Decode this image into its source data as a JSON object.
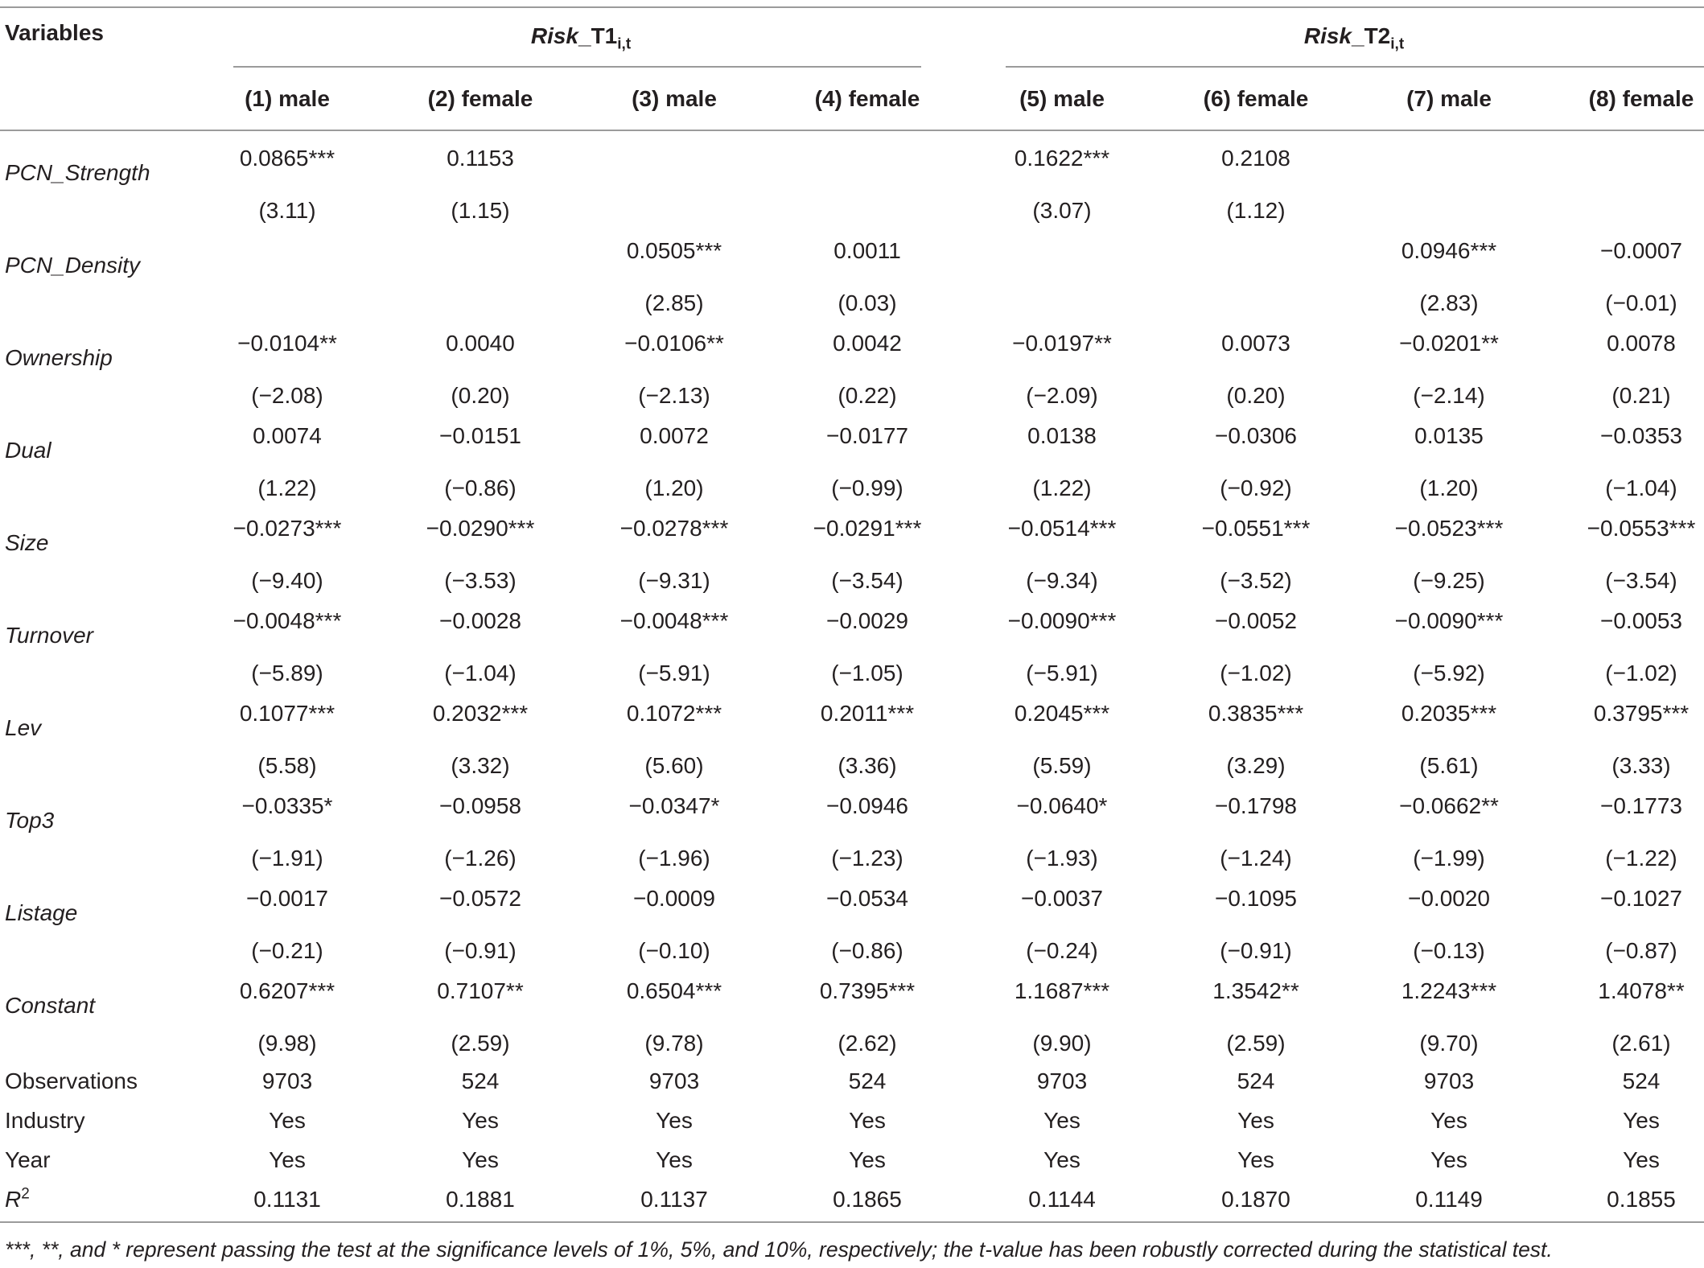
{
  "header": {
    "variables_label": "Variables",
    "group1": {
      "main": "Risk",
      "suffix": "_T1",
      "sub": "i,t"
    },
    "group2": {
      "main": "Risk",
      "suffix": "_T2",
      "sub": "i,t"
    },
    "columns": [
      "(1) male",
      "(2) female",
      "(3) male",
      "(4) female",
      "(5) male",
      "(6) female",
      "(7) male",
      "(8) female"
    ]
  },
  "rows": [
    {
      "label": "PCN_Strength",
      "italic": true,
      "coef": [
        "0.0865***",
        "0.1153",
        "",
        "",
        "0.1622***",
        "0.2108",
        "",
        ""
      ],
      "tval": [
        "(3.11)",
        "(1.15)",
        "",
        "",
        "(3.07)",
        "(1.12)",
        "",
        ""
      ]
    },
    {
      "label": "PCN_Density",
      "italic": true,
      "coef": [
        "",
        "",
        "0.0505***",
        "0.0011",
        "",
        "",
        "0.0946***",
        "−0.0007"
      ],
      "tval": [
        "",
        "",
        "(2.85)",
        "(0.03)",
        "",
        "",
        "(2.83)",
        "(−0.01)"
      ]
    },
    {
      "label": "Ownership",
      "italic": true,
      "coef": [
        "−0.0104**",
        "0.0040",
        "−0.0106**",
        "0.0042",
        "−0.0197**",
        "0.0073",
        "−0.0201**",
        "0.0078"
      ],
      "tval": [
        "(−2.08)",
        "(0.20)",
        "(−2.13)",
        "(0.22)",
        "(−2.09)",
        "(0.20)",
        "(−2.14)",
        "(0.21)"
      ]
    },
    {
      "label": "Dual",
      "italic": true,
      "coef": [
        "0.0074",
        "−0.0151",
        "0.0072",
        "−0.0177",
        "0.0138",
        "−0.0306",
        "0.0135",
        "−0.0353"
      ],
      "tval": [
        "(1.22)",
        "(−0.86)",
        "(1.20)",
        "(−0.99)",
        "(1.22)",
        "(−0.92)",
        "(1.20)",
        "(−1.04)"
      ]
    },
    {
      "label": "Size",
      "italic": true,
      "coef": [
        "−0.0273***",
        "−0.0290***",
        "−0.0278***",
        "−0.0291***",
        "−0.0514***",
        "−0.0551***",
        "−0.0523***",
        "−0.0553***"
      ],
      "tval": [
        "(−9.40)",
        "(−3.53)",
        "(−9.31)",
        "(−3.54)",
        "(−9.34)",
        "(−3.52)",
        "(−9.25)",
        "(−3.54)"
      ]
    },
    {
      "label": "Turnover",
      "italic": true,
      "coef": [
        "−0.0048***",
        "−0.0028",
        "−0.0048***",
        "−0.0029",
        "−0.0090***",
        "−0.0052",
        "−0.0090***",
        "−0.0053"
      ],
      "tval": [
        "(−5.89)",
        "(−1.04)",
        "(−5.91)",
        "(−1.05)",
        "(−5.91)",
        "(−1.02)",
        "(−5.92)",
        "(−1.02)"
      ]
    },
    {
      "label": "Lev",
      "italic": true,
      "coef": [
        "0.1077***",
        "0.2032***",
        "0.1072***",
        "0.2011***",
        "0.2045***",
        "0.3835***",
        "0.2035***",
        "0.3795***"
      ],
      "tval": [
        "(5.58)",
        "(3.32)",
        "(5.60)",
        "(3.36)",
        "(5.59)",
        "(3.29)",
        "(5.61)",
        "(3.33)"
      ]
    },
    {
      "label": "Top3",
      "italic": true,
      "coef": [
        "−0.0335*",
        "−0.0958",
        "−0.0347*",
        "−0.0946",
        "−0.0640*",
        "−0.1798",
        "−0.0662**",
        "−0.1773"
      ],
      "tval": [
        "(−1.91)",
        "(−1.26)",
        "(−1.96)",
        "(−1.23)",
        "(−1.93)",
        "(−1.24)",
        "(−1.99)",
        "(−1.22)"
      ]
    },
    {
      "label": "Listage",
      "italic": true,
      "coef": [
        "−0.0017",
        "−0.0572",
        "−0.0009",
        "−0.0534",
        "−0.0037",
        "−0.1095",
        "−0.0020",
        "−0.1027"
      ],
      "tval": [
        "(−0.21)",
        "(−0.91)",
        "(−0.10)",
        "(−0.86)",
        "(−0.24)",
        "(−0.91)",
        "(−0.13)",
        "(−0.87)"
      ]
    },
    {
      "label": "Constant",
      "italic": true,
      "coef": [
        "0.6207***",
        "0.7107**",
        "0.6504***",
        "0.7395***",
        "1.1687***",
        "1.3542**",
        "1.2243***",
        "1.4078**"
      ],
      "tval": [
        "(9.98)",
        "(2.59)",
        "(9.78)",
        "(2.62)",
        "(9.90)",
        "(2.59)",
        "(9.70)",
        "(2.61)"
      ]
    }
  ],
  "summary": [
    {
      "label": "Observations",
      "values": [
        "9703",
        "524",
        "9703",
        "524",
        "9703",
        "524",
        "9703",
        "524"
      ]
    },
    {
      "label": "Industry",
      "values": [
        "Yes",
        "Yes",
        "Yes",
        "Yes",
        "Yes",
        "Yes",
        "Yes",
        "Yes"
      ]
    },
    {
      "label": "Year",
      "values": [
        "Yes",
        "Yes",
        "Yes",
        "Yes",
        "Yes",
        "Yes",
        "Yes",
        "Yes"
      ]
    },
    {
      "label": "R",
      "sup": "2",
      "values": [
        "0.1131",
        "0.1881",
        "0.1137",
        "0.1865",
        "0.1144",
        "0.1870",
        "0.1149",
        "0.1855"
      ]
    }
  ],
  "footnote": "***, **, and * represent passing the test at the significance levels of 1%, 5%, and 10%, respectively; the t-value has been robustly corrected during the statistical test."
}
